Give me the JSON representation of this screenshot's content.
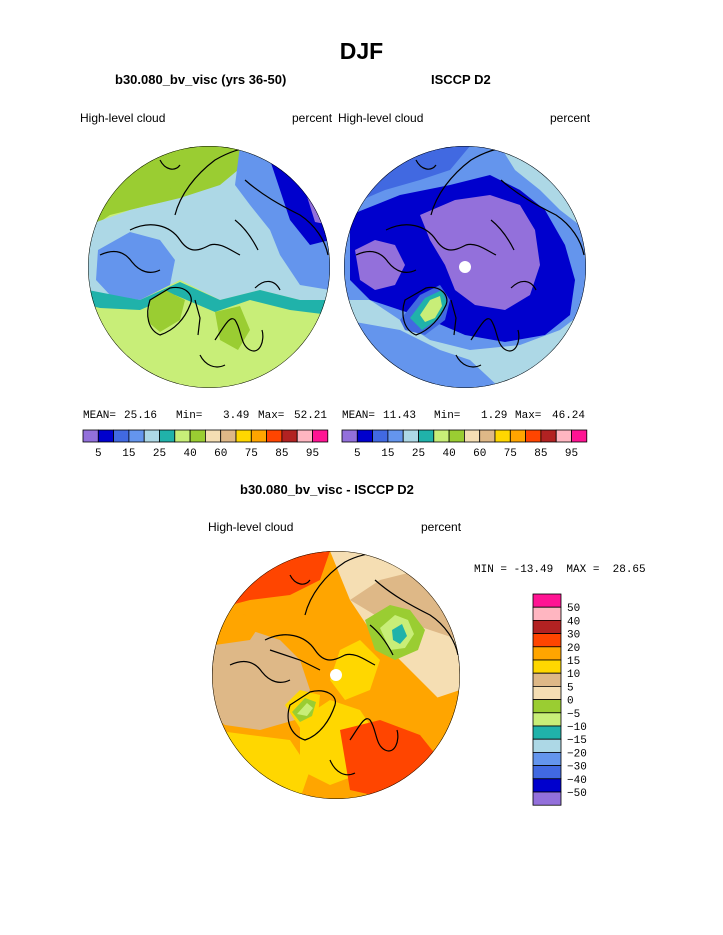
{
  "page_title": "DJF",
  "panels": {
    "model": {
      "title": "b30.080_bv_visc (yrs 36-50)",
      "left_label": "High-level cloud",
      "right_label": "percent",
      "stats": {
        "mean_label": "MEAN=",
        "mean": "25.16",
        "min_label": "Min=",
        "min": "3.49",
        "max_label": "Max=",
        "max": "52.21"
      }
    },
    "obs": {
      "title": "ISCCP D2",
      "left_label": "High-level cloud",
      "right_label": "percent",
      "stats": {
        "mean_label": "MEAN=",
        "mean": "11.43",
        "min_label": "Min=",
        "min": "1.29",
        "max_label": "Max=",
        "max": "46.24"
      }
    },
    "diff": {
      "title": "b30.080_bv_visc - ISCCP D2",
      "left_label": "High-level cloud",
      "right_label": "percent",
      "minmax_text": "MIN = -13.49  MAX =  28.65"
    }
  },
  "chart_data": [
    {
      "type": "heatmap",
      "projection": "north-polar-stereographic",
      "title": "b30.080_bv_visc (yrs 36-50)",
      "variable": "High-level cloud",
      "units": "percent",
      "mean": 25.16,
      "min": 3.49,
      "max": 52.21,
      "colorbar": {
        "levels": [
          5,
          10,
          15,
          20,
          25,
          30,
          40,
          50,
          60,
          70,
          75,
          80,
          85,
          90,
          95
        ],
        "tick_labels": [
          "5",
          "15",
          "25",
          "40",
          "60",
          "75",
          "85",
          "95"
        ],
        "colors": [
          "#9370db",
          "#0000cd",
          "#4169e1",
          "#6495ed",
          "#add8e6",
          "#20b2aa",
          "#c8ee78",
          "#9acd32",
          "#f5deb3",
          "#deb887",
          "#ffd700",
          "#ffa500",
          "#ff4500",
          "#b22222",
          "#ffb6c1",
          "#ff1493"
        ]
      }
    },
    {
      "type": "heatmap",
      "projection": "north-polar-stereographic",
      "title": "ISCCP D2",
      "variable": "High-level cloud",
      "units": "percent",
      "mean": 11.43,
      "min": 1.29,
      "max": 46.24,
      "colorbar": {
        "levels": [
          5,
          10,
          15,
          20,
          25,
          30,
          40,
          50,
          60,
          70,
          75,
          80,
          85,
          90,
          95
        ],
        "tick_labels": [
          "5",
          "15",
          "25",
          "40",
          "60",
          "75",
          "85",
          "95"
        ],
        "colors": [
          "#9370db",
          "#0000cd",
          "#4169e1",
          "#6495ed",
          "#add8e6",
          "#20b2aa",
          "#c8ee78",
          "#9acd32",
          "#f5deb3",
          "#deb887",
          "#ffd700",
          "#ffa500",
          "#ff4500",
          "#b22222",
          "#ffb6c1",
          "#ff1493"
        ]
      }
    },
    {
      "type": "heatmap",
      "projection": "north-polar-stereographic",
      "title": "b30.080_bv_visc - ISCCP D2",
      "variable": "High-level cloud",
      "units": "percent",
      "min": -13.49,
      "max": 28.65,
      "colorbar": {
        "orientation": "vertical",
        "labels_top_to_bottom": [
          "50",
          "40",
          "30",
          "20",
          "15",
          "10",
          "5",
          "0",
          "-5",
          "-10",
          "-15",
          "-20",
          "-30",
          "-40",
          "-50"
        ],
        "colors_top_to_bottom": [
          "#ff1493",
          "#ffb6c1",
          "#b22222",
          "#ff4500",
          "#ffa500",
          "#ffd700",
          "#deb887",
          "#f5deb3",
          "#9acd32",
          "#c8ee78",
          "#20b2aa",
          "#add8e6",
          "#6495ed",
          "#4169e1",
          "#0000cd",
          "#9370db"
        ]
      }
    }
  ]
}
